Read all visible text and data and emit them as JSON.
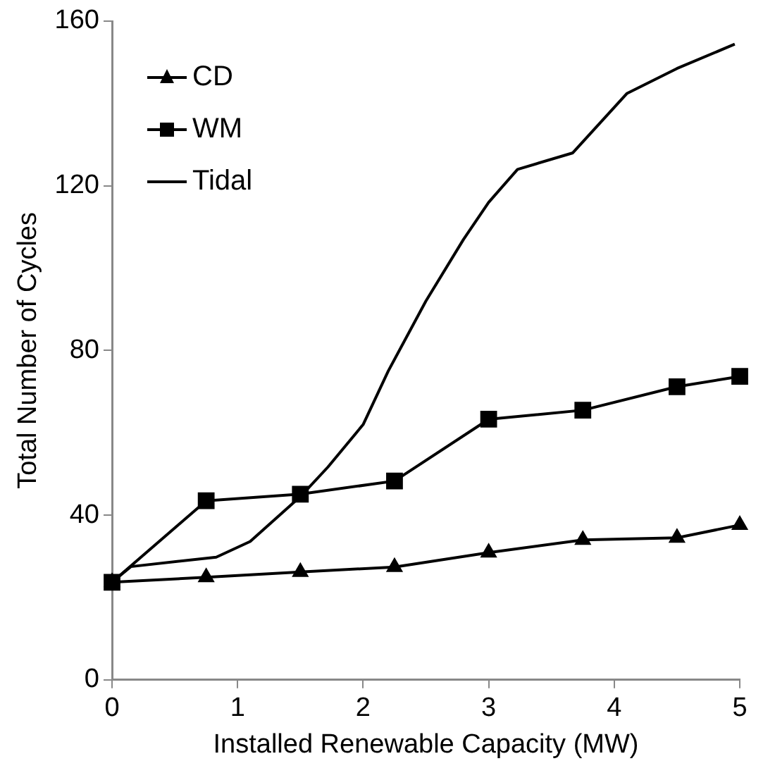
{
  "chart_data": {
    "type": "line",
    "xlabel": "Installed Renewable Capacity (MW)",
    "ylabel": "Total Number of Cycles",
    "xlim": [
      0,
      5
    ],
    "xticks": [
      0,
      1,
      2,
      3,
      4,
      5
    ],
    "ylim": [
      0,
      160
    ],
    "yticks": [
      0,
      40,
      80,
      120,
      160
    ],
    "grid": false,
    "legend": "top left",
    "series": [
      {
        "name": "CD",
        "color": "#000000",
        "marker": "triangle",
        "x": [
          0,
          0.75,
          1.5,
          2.25,
          3,
          3.75,
          4.5,
          5
        ],
        "values": [
          23.7,
          24.9,
          26.2,
          27.4,
          30.9,
          34,
          34.5,
          37.6
        ]
      },
      {
        "name": "WM",
        "color": "#000000",
        "marker": "square",
        "x": [
          0,
          0.75,
          1.5,
          2.25,
          3,
          3.75,
          4.5,
          5
        ],
        "values": [
          23.7,
          43.5,
          45.1,
          48.3,
          63.3,
          65.5,
          71.2,
          73.7
        ]
      },
      {
        "name": "Tidal",
        "color": "#000000",
        "marker": "none",
        "x": [
          0,
          0.15,
          0.83,
          1.1,
          1.5,
          1.72,
          2,
          2.2,
          2.5,
          2.8,
          3,
          3.23,
          3.67,
          4.1,
          4.5,
          4.96
        ],
        "values": [
          23.7,
          27.5,
          29.8,
          33.6,
          44.5,
          51.7,
          62,
          75,
          92,
          107,
          116,
          124,
          128,
          142.4,
          148.5,
          154.4
        ]
      }
    ]
  }
}
